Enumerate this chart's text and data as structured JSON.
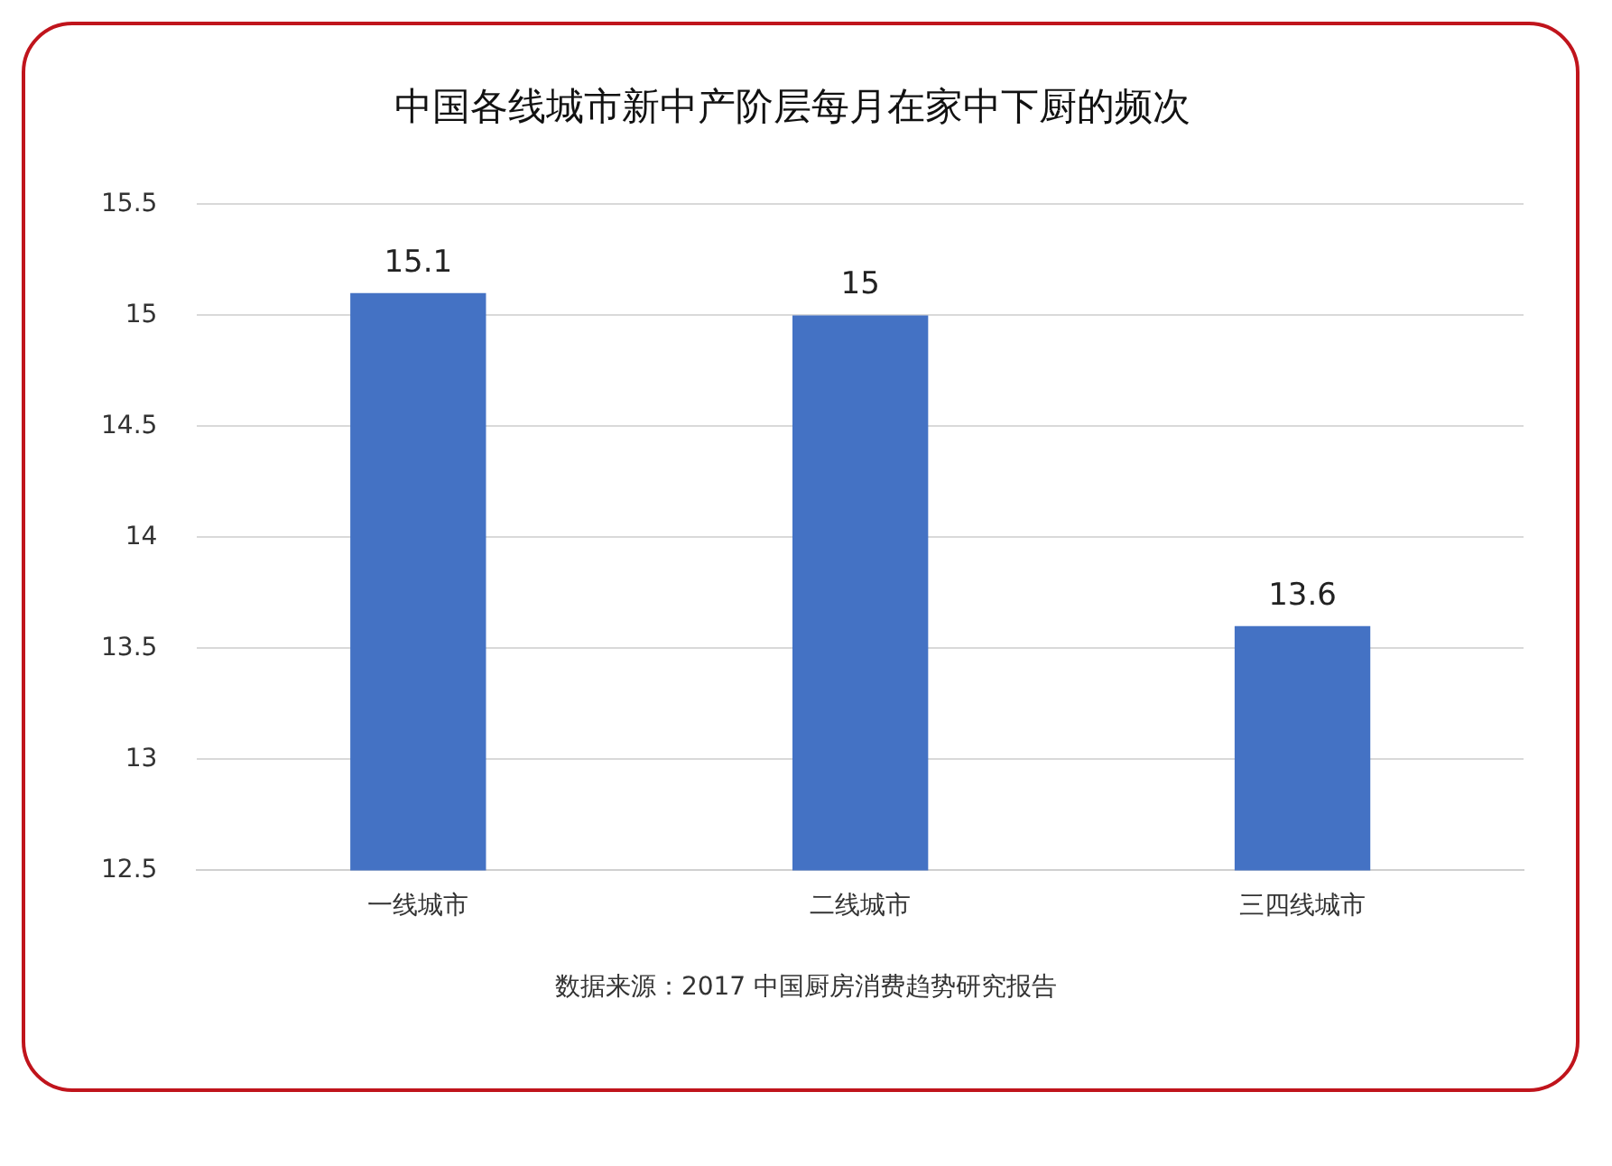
{
  "chart_data": {
    "type": "bar",
    "title": "中国各线城市新中产阶层每月在家中下厨的频次",
    "categories": [
      "一线城市",
      "二线城市",
      "三四线城市"
    ],
    "values": [
      15.1,
      15,
      13.6
    ],
    "color": "#4472c4",
    "ylim": [
      12.5,
      15.5
    ],
    "yticks": [
      12.5,
      13,
      13.5,
      14,
      14.5,
      15,
      15.5
    ],
    "grid": "y",
    "data_labels": true,
    "legend": false,
    "annotations": [
      "数据来源：2017 中国厨房消费趋势研究报告"
    ]
  }
}
